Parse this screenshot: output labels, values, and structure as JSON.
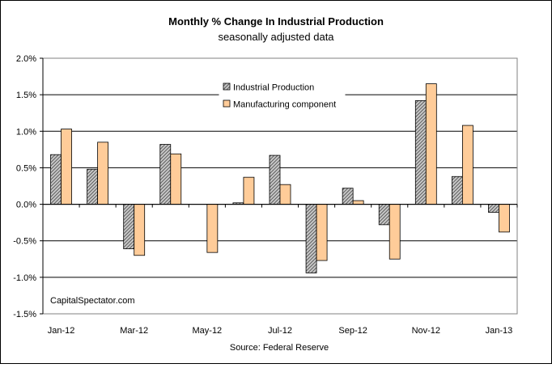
{
  "chart_data": {
    "type": "bar",
    "title": "Monthly %  Change In Industrial Production",
    "subtitle": "seasonally adjusted data",
    "source": "Source: Federal Reserve",
    "watermark": "CapitalSpectator.com",
    "categories": [
      "Jan-12",
      "Feb-12",
      "Mar-12",
      "Apr-12",
      "May-12",
      "Jun-12",
      "Jul-12",
      "Aug-12",
      "Sep-12",
      "Oct-12",
      "Nov-12",
      "Dec-12",
      "Jan-13"
    ],
    "x_tick_labels": [
      "Jan-12",
      "",
      "Mar-12",
      "",
      "May-12",
      "",
      "Jul-12",
      "",
      "Sep-12",
      "",
      "Nov-12",
      "",
      "Jan-13"
    ],
    "y_ticks": [
      -1.5,
      -1.0,
      -0.5,
      0.0,
      0.5,
      1.0,
      1.5,
      2.0
    ],
    "y_tick_labels": [
      "-1.5%",
      "-1.0%",
      "-0.5%",
      "0.0%",
      "0.5%",
      "1.0%",
      "1.5%",
      "2.0%"
    ],
    "ylim": [
      -1.5,
      2.0
    ],
    "grid": true,
    "legend_position": "top-center",
    "series": [
      {
        "name": "Industrial Production",
        "color": "#808080",
        "pattern": "hatched",
        "values": [
          0.68,
          0.48,
          -0.61,
          0.82,
          0.0,
          0.02,
          0.67,
          -0.94,
          0.22,
          -0.28,
          1.42,
          0.38,
          -0.11
        ]
      },
      {
        "name": "Manufacturing component",
        "color": "#FFCC99",
        "pattern": "solid",
        "values": [
          1.03,
          0.85,
          -0.7,
          0.69,
          -0.66,
          0.37,
          0.27,
          -0.77,
          0.05,
          -0.75,
          1.65,
          1.08,
          -0.38
        ]
      }
    ]
  }
}
